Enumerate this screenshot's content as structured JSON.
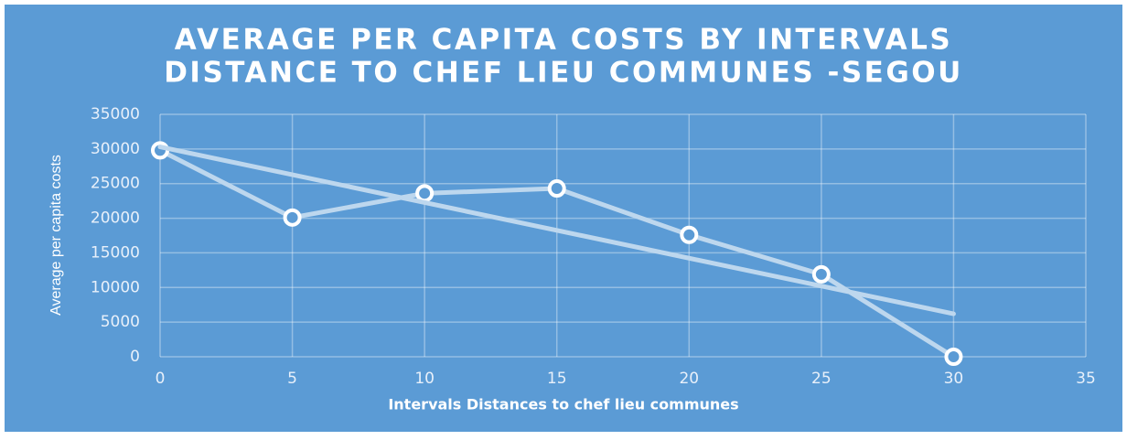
{
  "chart_data": {
    "type": "line",
    "title": [
      "AVERAGE PER CAPITA COSTS BY INTERVALS",
      "DISTANCE TO CHEF LIEU COMMUNES -SEGOU"
    ],
    "x_label": "Intervals Distances to chef lieu communes",
    "y_label": "Average per capita costs",
    "series": [
      {
        "x": [
          0,
          5,
          10,
          15,
          20,
          25,
          30
        ],
        "values": [
          29800,
          20100,
          23600,
          24300,
          17600,
          11900,
          0
        ],
        "color": "#bdd7ee",
        "markers": true
      },
      {
        "x": [
          0,
          30
        ],
        "values": [
          30300,
          6200
        ],
        "color": "#bdd7ee",
        "markers": false,
        "trendline": true
      }
    ],
    "xlim": [
      0,
      35
    ],
    "xticks": [
      0,
      5,
      10,
      15,
      20,
      25,
      30,
      35
    ],
    "ylim": [
      0,
      35000
    ],
    "yticks": [
      0,
      5000,
      10000,
      15000,
      20000,
      25000,
      30000,
      35000
    ],
    "grid": true
  }
}
